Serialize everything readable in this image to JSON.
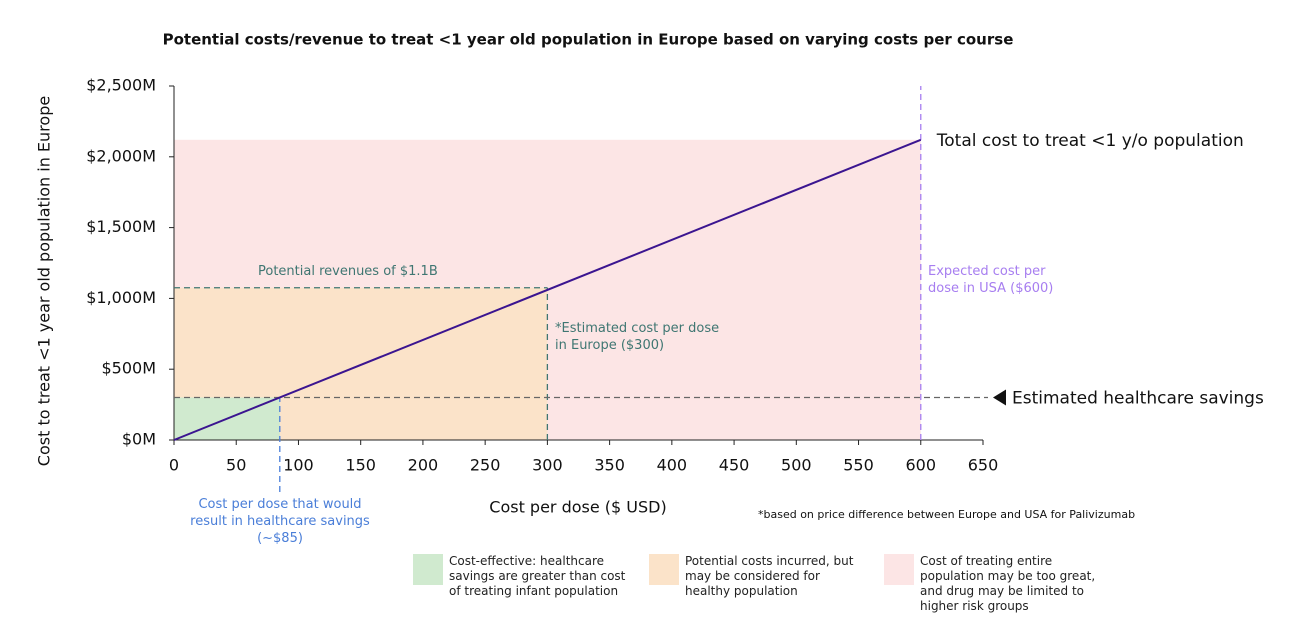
{
  "chart_data": {
    "type": "line",
    "title": "Potential costs/revenue to treat <1 year old population in Europe based on varying costs per course",
    "x_label": "Cost per dose ($ USD)",
    "y_label": "Cost to treat <1 year old population in Europe",
    "x": [
      0,
      600
    ],
    "series": [
      {
        "name": "Total cost to treat <1 y/o population",
        "color": "#3b1590",
        "values": [
          0,
          2120
        ]
      }
    ],
    "xlim": [
      0,
      650
    ],
    "xticks": [
      0,
      50,
      100,
      150,
      200,
      250,
      300,
      350,
      400,
      450,
      500,
      550,
      600,
      650
    ],
    "ylim": [
      0,
      2500
    ],
    "yticks": [
      {
        "value": 0,
        "label": "$0M"
      },
      {
        "value": 500,
        "label": "$500M"
      },
      {
        "value": 1000,
        "label": "$1,000M"
      },
      {
        "value": 1500,
        "label": "$1,500M"
      },
      {
        "value": 2000,
        "label": "$2,000M"
      },
      {
        "value": 2500,
        "label": "$2,500M"
      }
    ],
    "regions": [
      {
        "label": "Cost of treating entire population may be too great, and drug may be limited to higher risk groups",
        "color": "#fce5e5",
        "x0": 0,
        "x1": 600,
        "y1": 2120
      },
      {
        "label": "Potential costs incurred, but may be considered for healthy population",
        "color": "#fbe3c9",
        "x0": 0,
        "x1": 300,
        "y1": 1075
      },
      {
        "label": "Cost-effective: healthcare savings are greater than cost of treating infant population",
        "color": "#d0eacf",
        "x0": 0,
        "x1": 85,
        "y1": 300
      }
    ],
    "ref_lines": [
      {
        "axis": "y",
        "value": 1075,
        "color": "#3f7672",
        "label": "Potential revenues of $1.1B"
      },
      {
        "axis": "x",
        "value": 300,
        "color": "#3f7672",
        "label": "*Estimated cost per dose in Europe ($300)"
      },
      {
        "axis": "x",
        "value": 600,
        "color": "#a77ef0",
        "label": "Expected cost per dose in USA ($600)"
      },
      {
        "axis": "y",
        "value": 300,
        "color": "#666666",
        "label": "Estimated healthcare savings"
      },
      {
        "axis": "x",
        "value": 85,
        "color": "#4a7ed8",
        "label": "Cost per dose that would result in healthcare savings (~$85)"
      }
    ],
    "footnote": "*based on price difference between Europe and USA for Palivizumab"
  }
}
